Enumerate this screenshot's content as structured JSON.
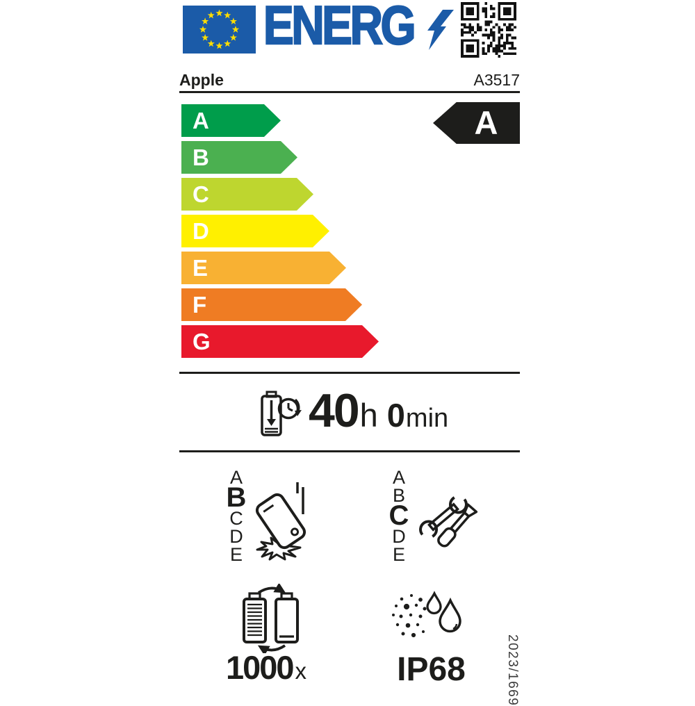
{
  "header": {
    "logo_text": "ENERG",
    "logo_color": "#1b5ba8",
    "flag_color": "#1b5ba8",
    "star_color": "#ffdd00",
    "brand": "Apple",
    "model": "A3517"
  },
  "efficiency_scale": {
    "classes": [
      {
        "label": "A",
        "color": "#009D4B"
      },
      {
        "label": "B",
        "color": "#4BB050"
      },
      {
        "label": "C",
        "color": "#BED62F"
      },
      {
        "label": "D",
        "color": "#FFF000"
      },
      {
        "label": "E",
        "color": "#F8B133"
      },
      {
        "label": "F",
        "color": "#EF7C23"
      },
      {
        "label": "G",
        "color": "#E8192C"
      }
    ],
    "rated_class": "A",
    "rated_class_bg": "#1d1d1b"
  },
  "battery_life": {
    "hours": "40",
    "hours_unit": "h",
    "minutes": "0",
    "minutes_unit": "min"
  },
  "drop_resistance": {
    "scale": [
      "A",
      "B",
      "C",
      "D",
      "E"
    ],
    "rating": "B"
  },
  "repairability": {
    "scale": [
      "A",
      "B",
      "C",
      "D",
      "E"
    ],
    "rating": "C"
  },
  "battery_cycles": {
    "value": "1000",
    "unit": "x"
  },
  "ingress_protection": {
    "rating": "IP68"
  },
  "regulation_number": "2023/1669",
  "icons": {
    "eu-flag": "eu flag with 12 stars",
    "qr-code": "qr code",
    "lightning-bolt": "⚡",
    "battery-clock": "battery with clock",
    "phone-drop": "falling phone impact",
    "wrench-screwdriver": "repair tools",
    "battery-cycle": "two batteries recycling",
    "dust-water": "dust particles and water drops"
  }
}
